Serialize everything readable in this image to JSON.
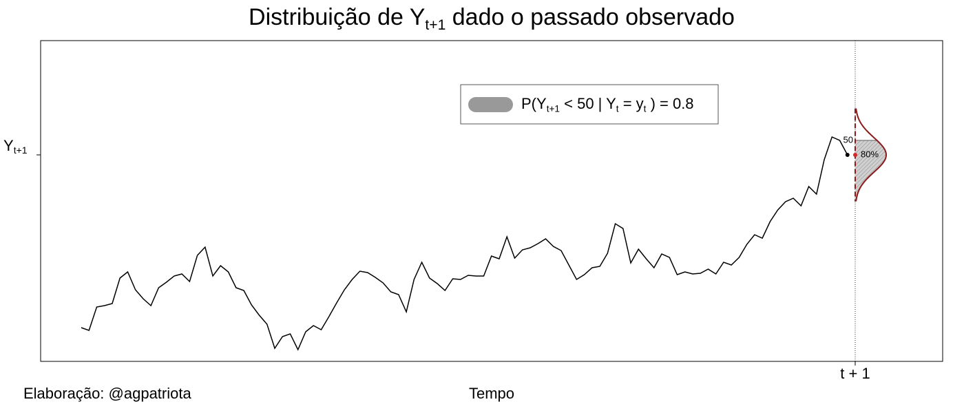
{
  "chart_data": {
    "type": "line",
    "title": [
      {
        "text": "Distribuição de Y",
        "sub": false
      },
      {
        "text": "t+1",
        "sub": true
      },
      {
        "text": " dado o passado observado",
        "sub": false
      }
    ],
    "xlabel": "Tempo",
    "caption": "Elaboração: @agpatriota",
    "color": "#000000",
    "x": [
      1,
      2,
      3,
      4,
      5,
      6,
      7,
      8,
      9,
      10,
      11,
      12,
      13,
      14,
      15,
      16,
      17,
      18,
      19,
      20,
      21,
      22,
      23,
      24,
      25,
      26,
      27,
      28,
      29,
      30,
      31,
      32,
      33,
      34,
      35,
      36,
      37,
      38,
      39,
      40,
      41,
      42,
      43,
      44,
      45,
      46,
      47,
      48,
      49,
      50,
      51,
      52,
      53,
      54,
      55,
      56,
      57,
      58,
      59,
      60,
      61,
      62,
      63,
      64,
      65,
      66,
      67,
      68,
      69,
      70,
      71,
      72,
      73,
      74,
      75,
      76,
      77,
      78,
      79,
      80,
      81,
      82,
      83,
      84,
      85,
      86,
      87,
      88,
      89,
      90,
      91,
      92,
      93,
      94,
      95,
      96,
      97,
      98,
      99,
      100
    ],
    "values": [
      -4.4,
      -5.2,
      1.6,
      2.0,
      2.6,
      10.0,
      11.8,
      6.6,
      4.0,
      2.0,
      7.2,
      8.8,
      10.6,
      11.2,
      9.0,
      16.6,
      19.0,
      10.6,
      13.6,
      11.8,
      7.2,
      6.4,
      2.2,
      -0.8,
      -3.4,
      -10.4,
      -7.0,
      -6.2,
      -10.8,
      -5.6,
      -3.8,
      -5.0,
      -1.2,
      2.8,
      6.6,
      9.6,
      12.0,
      11.6,
      10.2,
      8.6,
      6.0,
      5.2,
      0.2,
      9.6,
      14.6,
      10.0,
      8.4,
      6.4,
      9.8,
      9.6,
      10.8,
      10.6,
      10.6,
      16.4,
      15.6,
      22.0,
      15.8,
      18.2,
      18.8,
      20.0,
      21.4,
      19.2,
      18.0,
      13.8,
      9.6,
      11.0,
      13.0,
      13.4,
      17.2,
      25.8,
      24.4,
      14.4,
      18.4,
      15.6,
      13.0,
      17.0,
      16.0,
      11.0,
      11.8,
      11.2,
      11.4,
      12.6,
      11.2,
      14.6,
      13.8,
      16.0,
      19.8,
      22.6,
      21.6,
      26.4,
      29.8,
      32.2,
      33.2,
      31.0,
      36.6,
      34.4,
      44.4,
      51.0,
      50.0,
      45.8
    ],
    "xlim": [
      -4.25,
      112.3
    ],
    "ylim": [
      -14.2,
      79
    ],
    "xticks": [
      {
        "value": 101,
        "label": "t + 1"
      }
    ],
    "yticks": [
      {
        "value": 45.8,
        "label": "Y",
        "label_sub": "t+1"
      }
    ],
    "density": {
      "mean": 45.8,
      "sd": 5,
      "threshold": 50,
      "prob": 0.8,
      "prob_label": "80%",
      "color": "#8b1a1a",
      "fill": "#c8c8c8"
    },
    "legend": {
      "color": "#999999",
      "segments": [
        {
          "text": "P(Y",
          "sub": false
        },
        {
          "text": "t+1",
          "sub": true
        },
        {
          "text": " < 50 | Y",
          "sub": false
        },
        {
          "text": "t",
          "sub": true
        },
        {
          "text": " = y",
          "sub": false
        },
        {
          "text": "t",
          "sub": true
        },
        {
          "text": " ) = 0.8",
          "sub": false
        }
      ]
    }
  }
}
